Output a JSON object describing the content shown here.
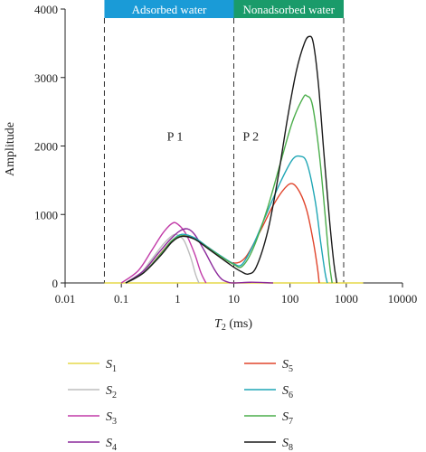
{
  "chart_data": {
    "type": "line",
    "xlabel": {
      "main": "T",
      "sub": "2",
      "unit": " (ms)"
    },
    "ylabel": "Amplitude",
    "x_scale": "log",
    "xlim": [
      0.01,
      10000
    ],
    "ylim": [
      0,
      4000
    ],
    "x_ticks": [
      0.01,
      0.1,
      1,
      10,
      100,
      1000,
      10000
    ],
    "x_tick_labels": [
      "0.01",
      "0.1",
      "1",
      "10",
      "100",
      "1000",
      "10000"
    ],
    "y_ticks": [
      0,
      1000,
      2000,
      3000,
      4000
    ],
    "y_tick_labels": [
      "0",
      "1000",
      "2000",
      "3000",
      "4000"
    ],
    "grid": false,
    "legend_position": "bottom",
    "regions": [
      {
        "label": "Adsorbed water",
        "x_start": 0.05,
        "x_end": 10,
        "color": "#1a9bd7"
      },
      {
        "label": "Nonadsorbed water",
        "x_start": 10,
        "x_end": 900,
        "color": "#1a9b6a"
      }
    ],
    "boundaries": [
      0.05,
      10,
      900
    ],
    "annotations": [
      {
        "text": "P 1",
        "x": 0.9,
        "y": 2080
      },
      {
        "text": "P 2",
        "x": 20,
        "y": 2080
      }
    ],
    "series": [
      {
        "name": "S",
        "sub": "1",
        "color": "#e6d84a",
        "points": [
          [
            0.05,
            0
          ],
          [
            0.1,
            0
          ],
          [
            1,
            0
          ],
          [
            10,
            0
          ],
          [
            100,
            0
          ],
          [
            1000,
            0
          ],
          [
            2000,
            0
          ]
        ]
      },
      {
        "name": "S",
        "sub": "2",
        "color": "#bdbdbd",
        "points": [
          [
            0.12,
            0
          ],
          [
            0.2,
            100
          ],
          [
            0.35,
            350
          ],
          [
            0.55,
            560
          ],
          [
            0.8,
            690
          ],
          [
            1.0,
            700
          ],
          [
            1.3,
            620
          ],
          [
            1.7,
            380
          ],
          [
            2.1,
            120
          ],
          [
            2.4,
            0
          ]
        ]
      },
      {
        "name": "S",
        "sub": "3",
        "color": "#c23ba8",
        "points": [
          [
            0.1,
            0
          ],
          [
            0.2,
            180
          ],
          [
            0.35,
            480
          ],
          [
            0.55,
            730
          ],
          [
            0.8,
            870
          ],
          [
            1.0,
            860
          ],
          [
            1.4,
            720
          ],
          [
            2.0,
            430
          ],
          [
            2.6,
            150
          ],
          [
            3.2,
            0
          ]
        ]
      },
      {
        "name": "S",
        "sub": "4",
        "color": "#8c2a9c",
        "points": [
          [
            0.12,
            0
          ],
          [
            0.25,
            180
          ],
          [
            0.45,
            430
          ],
          [
            0.75,
            640
          ],
          [
            1.1,
            760
          ],
          [
            1.5,
            790
          ],
          [
            2.0,
            710
          ],
          [
            3.0,
            470
          ],
          [
            4.5,
            200
          ],
          [
            6.0,
            60
          ],
          [
            8.0,
            10
          ],
          [
            10,
            0
          ],
          [
            20,
            10
          ],
          [
            35,
            5
          ],
          [
            50,
            0
          ]
        ]
      },
      {
        "name": "S",
        "sub": "5",
        "color": "#e0452c",
        "points": [
          [
            0.12,
            0
          ],
          [
            0.25,
            150
          ],
          [
            0.5,
            430
          ],
          [
            0.8,
            620
          ],
          [
            1.2,
            690
          ],
          [
            2,
            650
          ],
          [
            3.5,
            520
          ],
          [
            6,
            380
          ],
          [
            10,
            290
          ],
          [
            16,
            370
          ],
          [
            28,
            720
          ],
          [
            50,
            1130
          ],
          [
            80,
            1380
          ],
          [
            110,
            1450
          ],
          [
            150,
            1320
          ],
          [
            200,
            1050
          ],
          [
            260,
            600
          ],
          [
            310,
            200
          ],
          [
            330,
            0
          ]
        ]
      },
      {
        "name": "S",
        "sub": "6",
        "color": "#1fa6b5",
        "points": [
          [
            0.12,
            0
          ],
          [
            0.25,
            150
          ],
          [
            0.5,
            420
          ],
          [
            0.8,
            620
          ],
          [
            1.2,
            710
          ],
          [
            2,
            660
          ],
          [
            3.5,
            520
          ],
          [
            6,
            390
          ],
          [
            10,
            280
          ],
          [
            14,
            270
          ],
          [
            22,
            550
          ],
          [
            40,
            1050
          ],
          [
            70,
            1500
          ],
          [
            110,
            1800
          ],
          [
            150,
            1850
          ],
          [
            200,
            1750
          ],
          [
            280,
            1200
          ],
          [
            350,
            600
          ],
          [
            420,
            150
          ],
          [
            460,
            0
          ]
        ]
      },
      {
        "name": "S",
        "sub": "7",
        "color": "#4cae4c",
        "points": [
          [
            0.12,
            0
          ],
          [
            0.25,
            150
          ],
          [
            0.5,
            420
          ],
          [
            0.8,
            620
          ],
          [
            1.2,
            690
          ],
          [
            2,
            640
          ],
          [
            3.5,
            510
          ],
          [
            6,
            380
          ],
          [
            10,
            270
          ],
          [
            14,
            240
          ],
          [
            22,
            500
          ],
          [
            40,
            1100
          ],
          [
            70,
            1800
          ],
          [
            110,
            2350
          ],
          [
            170,
            2700
          ],
          [
            200,
            2730
          ],
          [
            250,
            2600
          ],
          [
            330,
            1900
          ],
          [
            420,
            1000
          ],
          [
            500,
            300
          ],
          [
            560,
            0
          ]
        ]
      },
      {
        "name": "S",
        "sub": "8",
        "color": "#1a1a1a",
        "points": [
          [
            0.12,
            0
          ],
          [
            0.25,
            150
          ],
          [
            0.5,
            400
          ],
          [
            0.8,
            600
          ],
          [
            1.2,
            680
          ],
          [
            2,
            640
          ],
          [
            3.5,
            500
          ],
          [
            6,
            360
          ],
          [
            10,
            230
          ],
          [
            14,
            160
          ],
          [
            18,
            130
          ],
          [
            25,
            230
          ],
          [
            40,
            750
          ],
          [
            60,
            1500
          ],
          [
            90,
            2400
          ],
          [
            130,
            3100
          ],
          [
            180,
            3500
          ],
          [
            220,
            3600
          ],
          [
            260,
            3500
          ],
          [
            320,
            2900
          ],
          [
            400,
            1900
          ],
          [
            500,
            950
          ],
          [
            600,
            300
          ],
          [
            680,
            0
          ]
        ]
      }
    ]
  }
}
